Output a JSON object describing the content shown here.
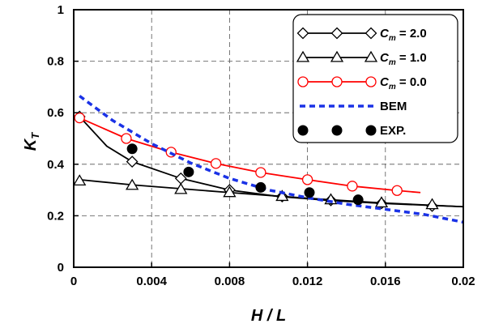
{
  "chart_data": {
    "type": "line",
    "xlabel": "H / L",
    "ylabel": {
      "main": "K",
      "sub": "T"
    },
    "xlim": [
      0,
      0.02
    ],
    "ylim": [
      0,
      1
    ],
    "x_ticks": [
      0,
      0.004,
      0.008,
      0.012,
      0.016,
      0.02
    ],
    "x_tick_labels": [
      "0",
      "0.004",
      "0.008",
      "0.012",
      "0.016",
      "0.02"
    ],
    "y_ticks": [
      0,
      0.2,
      0.4,
      0.6,
      0.8,
      1
    ],
    "y_tick_labels": [
      "0",
      "0.2",
      "0.4",
      "0.6",
      "0.8",
      "1"
    ],
    "grid": true,
    "legend_position": "top-right",
    "series": [
      {
        "key": "cm20",
        "legend": {
          "main": "C",
          "sub": "m",
          "rest": " = 2.0"
        },
        "color": "#000000",
        "line_style": "solid",
        "marker": "diamond",
        "line": [
          [
            0.0003,
            0.585
          ],
          [
            0.0017,
            0.47
          ],
          [
            0.003,
            0.41
          ],
          [
            0.0055,
            0.345
          ],
          [
            0.008,
            0.3
          ],
          [
            0.0105,
            0.275
          ],
          [
            0.013,
            0.26
          ],
          [
            0.0158,
            0.248
          ],
          [
            0.0184,
            0.24
          ],
          [
            0.02,
            0.235
          ]
        ],
        "markers": [
          [
            0.0003,
            0.585
          ],
          [
            0.003,
            0.41
          ],
          [
            0.0055,
            0.345
          ],
          [
            0.008,
            0.3
          ],
          [
            0.0107,
            0.275
          ],
          [
            0.0132,
            0.26
          ],
          [
            0.0158,
            0.248
          ],
          [
            0.0184,
            0.238
          ]
        ]
      },
      {
        "key": "cm10",
        "legend": {
          "main": "C",
          "sub": "m",
          "rest": " = 1.0"
        },
        "color": "#000000",
        "line_style": "solid",
        "marker": "triangle",
        "line": [
          [
            0.0003,
            0.34
          ],
          [
            0.003,
            0.32
          ],
          [
            0.0055,
            0.305
          ],
          [
            0.008,
            0.29
          ],
          [
            0.0107,
            0.275
          ],
          [
            0.0132,
            0.262
          ],
          [
            0.0158,
            0.25
          ],
          [
            0.02,
            0.235
          ]
        ],
        "markers": [
          [
            0.0003,
            0.335
          ],
          [
            0.003,
            0.318
          ],
          [
            0.0055,
            0.302
          ],
          [
            0.008,
            0.29
          ],
          [
            0.0107,
            0.275
          ],
          [
            0.0132,
            0.262
          ],
          [
            0.0158,
            0.25
          ],
          [
            0.0184,
            0.243
          ]
        ]
      },
      {
        "key": "cm00",
        "legend": {
          "main": "C",
          "sub": "m",
          "rest": " = 0.0"
        },
        "color": "#ff0000",
        "line_style": "solid",
        "marker": "circle-open",
        "line": [
          [
            0.0003,
            0.58
          ],
          [
            0.0027,
            0.5
          ],
          [
            0.005,
            0.447
          ],
          [
            0.0073,
            0.403
          ],
          [
            0.0096,
            0.368
          ],
          [
            0.012,
            0.34
          ],
          [
            0.0143,
            0.315
          ],
          [
            0.0166,
            0.298
          ],
          [
            0.0178,
            0.29
          ]
        ],
        "markers": [
          [
            0.0003,
            0.58
          ],
          [
            0.0027,
            0.5
          ],
          [
            0.005,
            0.447
          ],
          [
            0.0073,
            0.403
          ],
          [
            0.0096,
            0.368
          ],
          [
            0.012,
            0.34
          ],
          [
            0.0143,
            0.315
          ],
          [
            0.0166,
            0.298
          ]
        ]
      },
      {
        "key": "bem",
        "legend": {
          "main": "BEM",
          "sub": "",
          "rest": ""
        },
        "color": "#1a32e6",
        "line_style": "dashed",
        "marker": "none",
        "line": [
          [
            0.0003,
            0.665
          ],
          [
            0.002,
            0.57
          ],
          [
            0.004,
            0.48
          ],
          [
            0.006,
            0.405
          ],
          [
            0.008,
            0.345
          ],
          [
            0.01,
            0.3
          ],
          [
            0.012,
            0.27
          ],
          [
            0.014,
            0.245
          ],
          [
            0.016,
            0.225
          ],
          [
            0.018,
            0.205
          ],
          [
            0.02,
            0.175
          ]
        ],
        "markers": []
      },
      {
        "key": "exp",
        "legend": {
          "main": "EXP.",
          "sub": "",
          "rest": ""
        },
        "color": "#000000",
        "line_style": "none",
        "marker": "circle-filled",
        "line": [],
        "markers": [
          [
            0.003,
            0.46
          ],
          [
            0.0059,
            0.37
          ],
          [
            0.0096,
            0.31
          ],
          [
            0.0121,
            0.29
          ],
          [
            0.0146,
            0.262
          ]
        ]
      }
    ]
  }
}
